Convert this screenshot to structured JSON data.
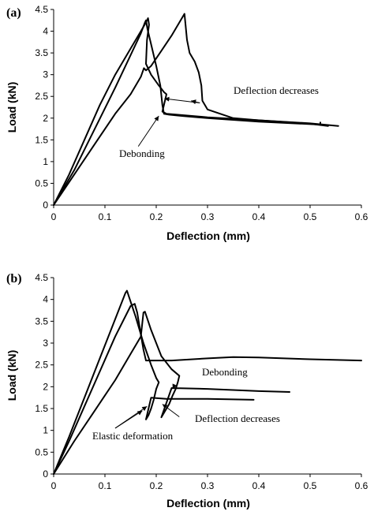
{
  "chart_data": [
    {
      "type": "line",
      "panel_label": "(a)",
      "xlabel": "Deflection (mm)",
      "ylabel": "Load (kN)",
      "xlim": [
        0,
        0.6
      ],
      "ylim": [
        0,
        4.5
      ],
      "xticks": [
        "0",
        "0.1",
        "0.2",
        "0.3",
        "0.4",
        "0.5",
        "0.6"
      ],
      "yticks": [
        "0",
        "0.5",
        "1",
        "1.5",
        "2",
        "2.5",
        "3",
        "3.5",
        "4",
        "4.5"
      ],
      "grid": false,
      "series": [
        {
          "x": [
            0,
            0.03,
            0.06,
            0.09,
            0.12,
            0.15,
            0.17,
            0.18,
            0.184,
            0.186,
            0.182,
            0.18,
            0.19,
            0.205,
            0.215,
            0.22,
            0.216,
            0.212,
            0.22,
            0.3,
            0.4,
            0.5,
            0.555
          ],
          "y": [
            0,
            0.7,
            1.5,
            2.3,
            3.0,
            3.6,
            4.0,
            4.2,
            4.3,
            4.15,
            3.8,
            3.25,
            3.0,
            2.75,
            2.6,
            2.55,
            2.35,
            2.15,
            2.1,
            2.02,
            1.95,
            1.88,
            1.82
          ]
        },
        {
          "x": [
            0,
            0.04,
            0.08,
            0.12,
            0.15,
            0.17,
            0.178,
            0.18,
            0.183,
            0.19,
            0.2,
            0.208,
            0.212,
            0.215,
            0.225,
            0.25,
            0.3,
            0.4,
            0.52,
            0.52
          ],
          "y": [
            0,
            0.8,
            1.75,
            2.7,
            3.45,
            3.95,
            4.2,
            4.25,
            4.05,
            3.7,
            3.2,
            2.75,
            2.3,
            2.1,
            2.08,
            2.05,
            2.0,
            1.92,
            1.85,
            1.9
          ]
        },
        {
          "x": [
            0,
            0.04,
            0.08,
            0.12,
            0.15,
            0.17,
            0.176,
            0.18,
            0.19,
            0.21,
            0.23,
            0.245,
            0.255,
            0.26,
            0.265,
            0.275,
            0.283,
            0.288,
            0.29,
            0.3,
            0.35,
            0.4,
            0.5,
            0.535
          ],
          "y": [
            0,
            0.7,
            1.4,
            2.1,
            2.55,
            2.95,
            3.15,
            3.1,
            3.2,
            3.55,
            3.9,
            4.2,
            4.4,
            3.8,
            3.5,
            3.3,
            3.05,
            2.75,
            2.4,
            2.2,
            2.0,
            1.95,
            1.87,
            1.82
          ]
        }
      ],
      "annotations": [
        {
          "text": "Deflection decreases",
          "at": [
            0.287,
            2.35
          ]
        },
        {
          "text": "Deflection decreases",
          "at": [
            0.225,
            2.4
          ]
        },
        {
          "text": "Debonding",
          "at": [
            0.205,
            2.05
          ]
        }
      ]
    },
    {
      "type": "line",
      "panel_label": "(b)",
      "xlabel": "Deflection (mm)",
      "ylabel": "Load (kN)",
      "xlim": [
        0,
        0.6
      ],
      "ylim": [
        0,
        4.5
      ],
      "xticks": [
        "0",
        "0.1",
        "0.2",
        "0.3",
        "0.4",
        "0.5",
        "0.6"
      ],
      "yticks": [
        "0",
        "0.5",
        "1",
        "1.5",
        "2",
        "2.5",
        "3",
        "3.5",
        "4",
        "4.5"
      ],
      "grid": false,
      "series": [
        {
          "x": [
            0,
            0.03,
            0.06,
            0.09,
            0.12,
            0.14,
            0.143,
            0.16,
            0.175,
            0.19,
            0.2,
            0.205,
            0.2,
            0.195,
            0.19,
            0.185,
            0.18,
            0.19,
            0.22,
            0.3,
            0.39
          ],
          "y": [
            0,
            0.85,
            1.75,
            2.65,
            3.55,
            4.15,
            4.2,
            3.6,
            3.0,
            2.5,
            2.2,
            2.1,
            1.95,
            1.7,
            1.5,
            1.35,
            1.25,
            1.75,
            1.72,
            1.72,
            1.7
          ]
        },
        {
          "x": [
            0,
            0.03,
            0.06,
            0.09,
            0.12,
            0.15,
            0.158,
            0.163,
            0.17,
            0.175,
            0.18,
            0.23,
            0.3,
            0.35,
            0.4,
            0.5,
            0.6
          ],
          "y": [
            0,
            0.75,
            1.55,
            2.35,
            3.15,
            3.85,
            3.9,
            3.7,
            3.2,
            2.85,
            2.6,
            2.6,
            2.65,
            2.68,
            2.67,
            2.63,
            2.6
          ]
        },
        {
          "x": [
            0,
            0.04,
            0.08,
            0.12,
            0.15,
            0.17,
            0.175,
            0.178,
            0.19,
            0.21,
            0.23,
            0.24,
            0.245,
            0.242,
            0.238,
            0.232,
            0.225,
            0.215,
            0.21,
            0.23,
            0.3,
            0.4,
            0.46
          ],
          "y": [
            0,
            0.75,
            1.45,
            2.15,
            2.75,
            3.15,
            3.7,
            3.72,
            3.3,
            2.7,
            2.4,
            2.3,
            2.25,
            2.1,
            1.95,
            1.8,
            1.6,
            1.4,
            1.3,
            1.97,
            1.95,
            1.9,
            1.88
          ]
        }
      ],
      "annotations": [
        {
          "text": "Debonding",
          "at": [
            0.238,
            2.0
          ]
        },
        {
          "text": "Deflection decreases",
          "at": [
            0.215,
            1.6
          ]
        },
        {
          "text": "Elastic deformation",
          "at": [
            0.178,
            1.55
          ]
        }
      ]
    }
  ]
}
